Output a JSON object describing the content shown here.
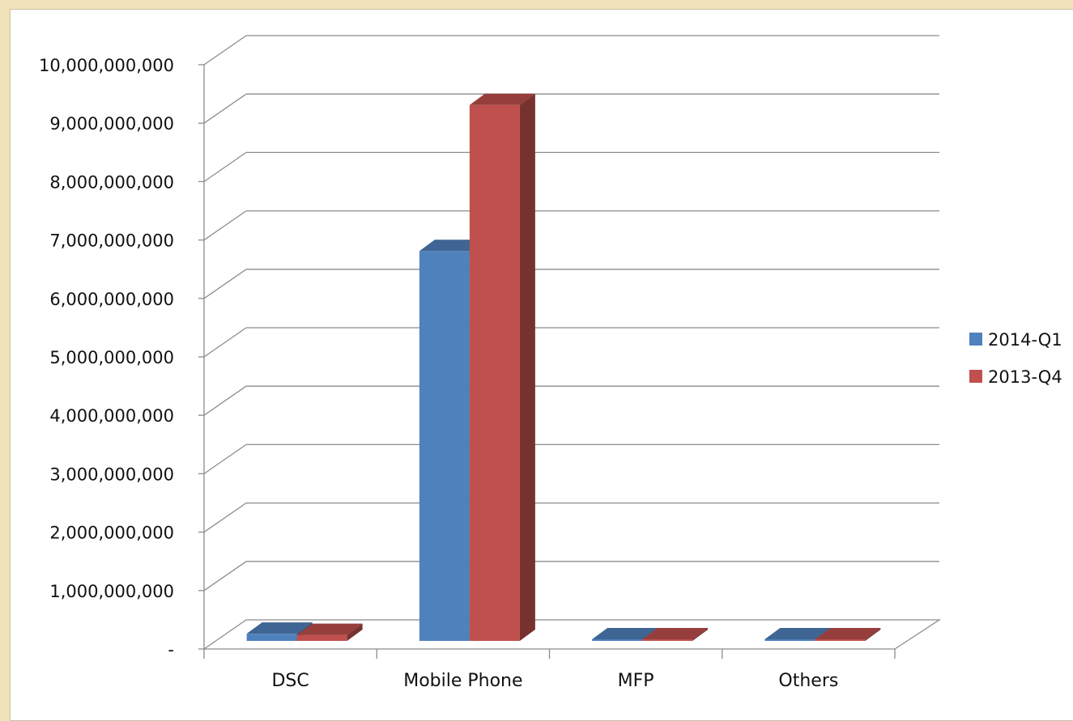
{
  "chart_data": {
    "type": "bar",
    "categories": [
      "DSC",
      "Mobile Phone",
      "MFP",
      "Others"
    ],
    "series": [
      {
        "name": "2014-Q1",
        "values": [
          150000000,
          6700000000,
          20000000,
          10000000
        ],
        "color": "#4f81bd"
      },
      {
        "name": "2013-Q4",
        "values": [
          130000000,
          9200000000,
          25000000,
          15000000
        ],
        "color": "#c0504d"
      }
    ],
    "yticks": [
      "-",
      "1,000,000,000",
      "2,000,000,000",
      "3,000,000,000",
      "4,000,000,000",
      "5,000,000,000",
      "6,000,000,000",
      "7,000,000,000",
      "8,000,000,000",
      "9,000,000,000",
      "10,000,000,000"
    ],
    "ylim": [
      0,
      10000000000
    ],
    "grid": true,
    "legend_position": "right",
    "style": "3d-clustered-column"
  }
}
